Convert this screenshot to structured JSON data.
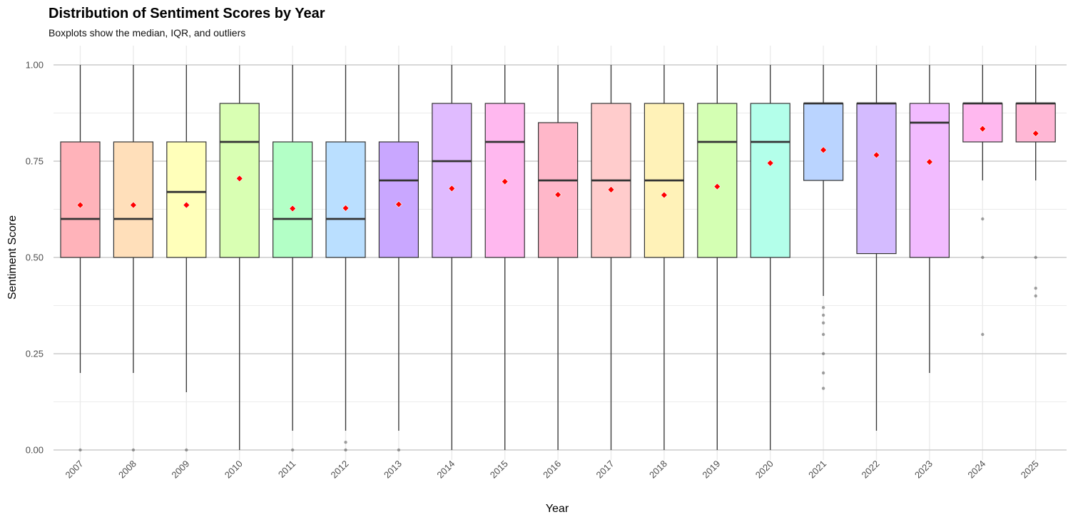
{
  "chart_data": {
    "type": "boxplot",
    "title": "Distribution of Sentiment Scores by Year",
    "subtitle": "Boxplots show the median, IQR, and outliers",
    "xlabel": "Year",
    "ylabel": "Sentiment Score",
    "ylim": [
      0,
      1
    ],
    "yticks": [
      "0.00",
      "0.25",
      "0.50",
      "0.75",
      "1.00"
    ],
    "grid": true,
    "mean_marker_color": "#ff0000",
    "boxes": [
      {
        "year": "2007",
        "fill": "#ffb3ba",
        "whisker_low": 0.2,
        "q1": 0.5,
        "median": 0.6,
        "q3": 0.8,
        "whisker_high": 1.0,
        "mean": 0.636,
        "outliers": [
          0.0
        ]
      },
      {
        "year": "2008",
        "fill": "#ffdfba",
        "whisker_low": 0.2,
        "q1": 0.5,
        "median": 0.6,
        "q3": 0.8,
        "whisker_high": 1.0,
        "mean": 0.636,
        "outliers": [
          0.0
        ]
      },
      {
        "year": "2009",
        "fill": "#ffffba",
        "whisker_low": 0.15,
        "q1": 0.5,
        "median": 0.67,
        "q3": 0.8,
        "whisker_high": 1.0,
        "mean": 0.636,
        "outliers": [
          0.0
        ]
      },
      {
        "year": "2010",
        "fill": "#d9ffb3",
        "whisker_low": 0.0,
        "q1": 0.5,
        "median": 0.8,
        "q3": 0.9,
        "whisker_high": 1.0,
        "mean": 0.705,
        "outliers": []
      },
      {
        "year": "2011",
        "fill": "#b3ffc6",
        "whisker_low": 0.05,
        "q1": 0.5,
        "median": 0.6,
        "q3": 0.8,
        "whisker_high": 1.0,
        "mean": 0.627,
        "outliers": [
          0.0
        ]
      },
      {
        "year": "2012",
        "fill": "#badfff",
        "whisker_low": 0.05,
        "q1": 0.5,
        "median": 0.6,
        "q3": 0.8,
        "whisker_high": 1.0,
        "mean": 0.628,
        "outliers": [
          0.02,
          0.0
        ]
      },
      {
        "year": "2013",
        "fill": "#c9a7ff",
        "whisker_low": 0.05,
        "q1": 0.5,
        "median": 0.7,
        "q3": 0.8,
        "whisker_high": 1.0,
        "mean": 0.638,
        "outliers": [
          0.0
        ]
      },
      {
        "year": "2014",
        "fill": "#e0bbff",
        "whisker_low": 0.0,
        "q1": 0.5,
        "median": 0.75,
        "q3": 0.9,
        "whisker_high": 1.0,
        "mean": 0.679,
        "outliers": []
      },
      {
        "year": "2015",
        "fill": "#ffb8ef",
        "whisker_low": 0.0,
        "q1": 0.5,
        "median": 0.8,
        "q3": 0.9,
        "whisker_high": 1.0,
        "mean": 0.697,
        "outliers": []
      },
      {
        "year": "2016",
        "fill": "#ffb7c9",
        "whisker_low": 0.0,
        "q1": 0.5,
        "median": 0.7,
        "q3": 0.85,
        "whisker_high": 1.0,
        "mean": 0.663,
        "outliers": []
      },
      {
        "year": "2017",
        "fill": "#ffcccc",
        "whisker_low": 0.0,
        "q1": 0.5,
        "median": 0.7,
        "q3": 0.9,
        "whisker_high": 1.0,
        "mean": 0.676,
        "outliers": []
      },
      {
        "year": "2018",
        "fill": "#fff2b8",
        "whisker_low": 0.0,
        "q1": 0.5,
        "median": 0.7,
        "q3": 0.9,
        "whisker_high": 1.0,
        "mean": 0.662,
        "outliers": []
      },
      {
        "year": "2019",
        "fill": "#d4ffb3",
        "whisker_low": 0.0,
        "q1": 0.5,
        "median": 0.8,
        "q3": 0.9,
        "whisker_high": 1.0,
        "mean": 0.684,
        "outliers": []
      },
      {
        "year": "2020",
        "fill": "#b3ffea",
        "whisker_low": 0.0,
        "q1": 0.5,
        "median": 0.8,
        "q3": 0.9,
        "whisker_high": 1.0,
        "mean": 0.745,
        "outliers": []
      },
      {
        "year": "2021",
        "fill": "#bad4ff",
        "whisker_low": 0.4,
        "q1": 0.7,
        "median": 0.9,
        "q3": 0.9,
        "whisker_high": 1.0,
        "mean": 0.779,
        "outliers": [
          0.37,
          0.35,
          0.33,
          0.3,
          0.25,
          0.2,
          0.16
        ]
      },
      {
        "year": "2022",
        "fill": "#d4bbff",
        "whisker_low": 0.05,
        "q1": 0.51,
        "median": 0.9,
        "q3": 0.9,
        "whisker_high": 1.0,
        "mean": 0.766,
        "outliers": []
      },
      {
        "year": "2023",
        "fill": "#f2bbff",
        "whisker_low": 0.2,
        "q1": 0.5,
        "median": 0.85,
        "q3": 0.9,
        "whisker_high": 1.0,
        "mean": 0.748,
        "outliers": []
      },
      {
        "year": "2024",
        "fill": "#ffb8ef",
        "whisker_low": 0.7,
        "q1": 0.8,
        "median": 0.9,
        "q3": 0.9,
        "whisker_high": 1.0,
        "mean": 0.834,
        "outliers": [
          0.6,
          0.5,
          0.3
        ]
      },
      {
        "year": "2025",
        "fill": "#ffb7d5",
        "whisker_low": 0.7,
        "q1": 0.8,
        "median": 0.9,
        "q3": 0.9,
        "whisker_high": 1.0,
        "mean": 0.822,
        "outliers": [
          0.5,
          0.42,
          0.4
        ]
      }
    ]
  }
}
